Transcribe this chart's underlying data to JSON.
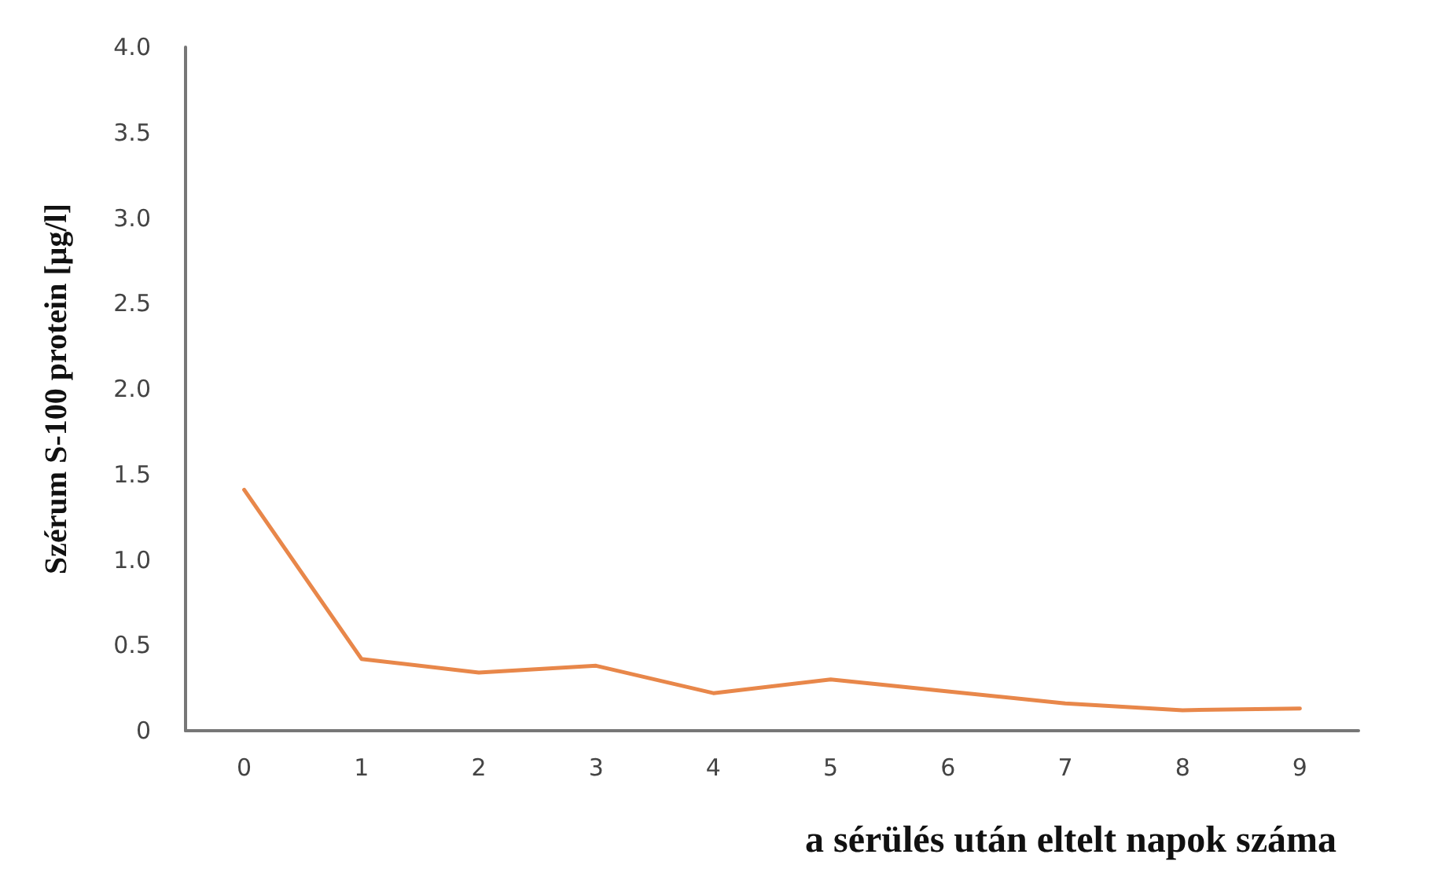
{
  "chart_data": {
    "type": "line",
    "xlabel": "a sérülés után eltelt napok száma",
    "ylabel": "Szérum S-100 protein [μg/l]",
    "categories": [
      "0",
      "1",
      "2",
      "3",
      "4",
      "5",
      "6",
      "7",
      "8",
      "9"
    ],
    "series": [
      {
        "color": "#e8874a",
        "values": [
          1.41,
          0.42,
          0.34,
          0.38,
          0.22,
          0.3,
          0.23,
          0.16,
          0.12,
          0.13
        ]
      }
    ],
    "ylim": [
      0,
      4
    ],
    "yticks": [
      {
        "value": 0,
        "label": "0"
      },
      {
        "value": 0.5,
        "label": "0.5"
      },
      {
        "value": 1,
        "label": "1.0"
      },
      {
        "value": 1.5,
        "label": "1.5"
      },
      {
        "value": 2,
        "label": "2.0"
      },
      {
        "value": 2.5,
        "label": "2.5"
      },
      {
        "value": 3,
        "label": "3.0"
      },
      {
        "value": 3.5,
        "label": "3.5"
      },
      {
        "value": 4,
        "label": "4.0"
      }
    ],
    "grid": false,
    "marker": "none",
    "line_style": "solid"
  }
}
